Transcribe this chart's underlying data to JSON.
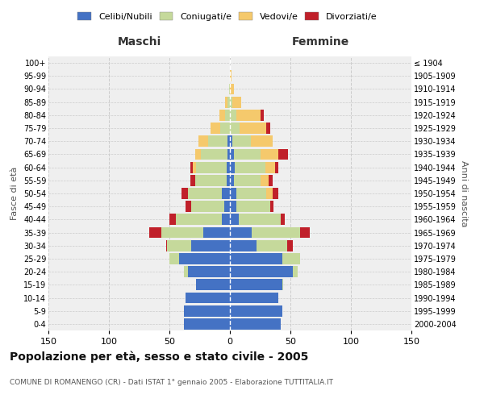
{
  "age_groups": [
    "0-4",
    "5-9",
    "10-14",
    "15-19",
    "20-24",
    "25-29",
    "30-34",
    "35-39",
    "40-44",
    "45-49",
    "50-54",
    "55-59",
    "60-64",
    "65-69",
    "70-74",
    "75-79",
    "80-84",
    "85-89",
    "90-94",
    "95-99",
    "100+"
  ],
  "birth_years": [
    "2000-2004",
    "1995-1999",
    "1990-1994",
    "1985-1989",
    "1980-1984",
    "1975-1979",
    "1970-1974",
    "1965-1969",
    "1960-1964",
    "1955-1959",
    "1950-1954",
    "1945-1949",
    "1940-1944",
    "1935-1939",
    "1930-1934",
    "1925-1929",
    "1920-1924",
    "1915-1919",
    "1910-1914",
    "1905-1909",
    "≤ 1904"
  ],
  "male": {
    "celibi": [
      38,
      38,
      37,
      28,
      35,
      42,
      32,
      22,
      7,
      5,
      7,
      3,
      3,
      2,
      2,
      0,
      0,
      0,
      0,
      0,
      0
    ],
    "coniugati": [
      0,
      0,
      0,
      0,
      3,
      8,
      20,
      35,
      38,
      27,
      28,
      26,
      25,
      22,
      16,
      8,
      4,
      2,
      1,
      0,
      0
    ],
    "vedovi": [
      0,
      0,
      0,
      0,
      0,
      0,
      0,
      0,
      0,
      0,
      0,
      0,
      3,
      5,
      8,
      8,
      5,
      2,
      0,
      0,
      0
    ],
    "divorziati": [
      0,
      0,
      0,
      0,
      0,
      0,
      1,
      10,
      5,
      5,
      5,
      4,
      2,
      0,
      0,
      0,
      0,
      0,
      0,
      0,
      0
    ]
  },
  "female": {
    "nubili": [
      42,
      43,
      40,
      43,
      52,
      43,
      22,
      18,
      7,
      5,
      5,
      3,
      4,
      3,
      2,
      0,
      0,
      0,
      0,
      0,
      0
    ],
    "coniugate": [
      0,
      0,
      0,
      1,
      4,
      15,
      25,
      40,
      35,
      28,
      25,
      22,
      25,
      22,
      15,
      8,
      5,
      2,
      0,
      0,
      0
    ],
    "vedove": [
      0,
      0,
      0,
      0,
      0,
      0,
      0,
      0,
      0,
      0,
      5,
      7,
      8,
      15,
      18,
      22,
      20,
      7,
      3,
      1,
      0
    ],
    "divorziate": [
      0,
      0,
      0,
      0,
      0,
      0,
      5,
      8,
      3,
      3,
      5,
      3,
      3,
      8,
      0,
      3,
      3,
      0,
      0,
      0,
      0
    ]
  },
  "colors": {
    "celibi": "#4472C4",
    "coniugati": "#C5D99B",
    "vedovi": "#F5C96C",
    "divorziati": "#C0202A"
  },
  "xlim": 150,
  "title": "Popolazione per età, sesso e stato civile - 2005",
  "subtitle": "COMUNE DI ROMANENGO (CR) - Dati ISTAT 1° gennaio 2005 - Elaborazione TUTTITALIA.IT",
  "ylabel_left": "Fasce di età",
  "ylabel_right": "Anni di nascita",
  "xlabel_maschi": "Maschi",
  "xlabel_femmine": "Femmine",
  "bg_color": "#ffffff",
  "plot_bg": "#efefef",
  "grid_color": "#cccccc",
  "bar_height": 0.85
}
